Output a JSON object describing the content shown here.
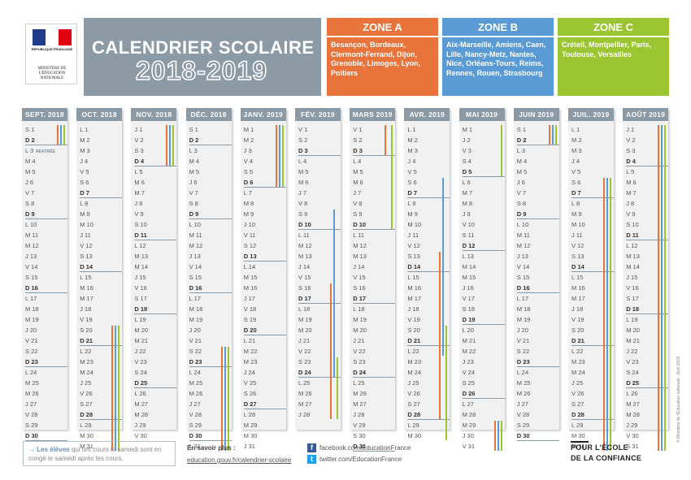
{
  "logo": {
    "republic": "RÉPUBLIQUE FRANÇAISE",
    "ministry": "MINISTÈRE DE L'ÉDUCATION NATIONALE",
    "flag_colors": [
      "#1f3a8a",
      "#ffffff",
      "#e1000f"
    ]
  },
  "title": {
    "line1": "CALENDRIER SCOLAIRE",
    "line2": "2018-2019"
  },
  "zones": [
    {
      "key": "A",
      "name": "ZONE A",
      "color": "#e8743b",
      "cities": "Besançon, Bordeaux, Clermont-Ferrand, Dijon, Grenoble, Limoges, Lyon, Poitiers"
    },
    {
      "key": "B",
      "name": "ZONE B",
      "color": "#5b9bd5",
      "cities": "Aix-Marseille, Amiens, Caen, Lille, Nancy-Metz, Nantes, Nice, Orléans-Tours, Reims, Rennes, Rouen, Strasbourg"
    },
    {
      "key": "C",
      "name": "ZONE C",
      "color": "#9bc531",
      "cities": "Créteil, Montpellier, Paris, Toulouse, Versailles"
    }
  ],
  "months": [
    {
      "name": "SEPT. 2018",
      "days": [
        "S 1",
        "D 2",
        "L 3",
        "M 4",
        "M 5",
        "J 6",
        "V 7",
        "S 8",
        "D 9",
        "L 10",
        "M 11",
        "M 12",
        "J 13",
        "V 14",
        "S 15",
        "D 16",
        "L 17",
        "M 18",
        "M 19",
        "J 20",
        "V 21",
        "S 22",
        "D 23",
        "L 24",
        "M 25",
        "M 26",
        "J 27",
        "V 28",
        "S 29",
        "D 30"
      ],
      "note": {
        "day": 3,
        "text": "RENTRÉE"
      },
      "bars": [
        {
          "zone": "A",
          "from": 1,
          "to": 2
        },
        {
          "zone": "B",
          "from": 1,
          "to": 2
        },
        {
          "zone": "C",
          "from": 1,
          "to": 2
        }
      ]
    },
    {
      "name": "OCT. 2018",
      "days": [
        "L 1",
        "M 2",
        "M 3",
        "J 4",
        "V 5",
        "S 6",
        "D 7",
        "L 8",
        "M 9",
        "M 10",
        "J 11",
        "V 12",
        "S 13",
        "D 14",
        "L 15",
        "M 16",
        "M 17",
        "J 18",
        "V 19",
        "S 20",
        "D 21",
        "L 22",
        "M 23",
        "M 24",
        "J 25",
        "V 26",
        "S 27",
        "D 28",
        "L 29",
        "M 30",
        "M 31"
      ],
      "bars": [
        {
          "zone": "A",
          "from": 20,
          "to": 31
        },
        {
          "zone": "B",
          "from": 20,
          "to": 31
        },
        {
          "zone": "C",
          "from": 20,
          "to": 31
        }
      ]
    },
    {
      "name": "NOV. 2018",
      "days": [
        "J 1",
        "V 2",
        "S 3",
        "D 4",
        "L 5",
        "M 6",
        "M 7",
        "J 8",
        "V 9",
        "S 10",
        "D 11",
        "L 12",
        "M 13",
        "M 14",
        "J 15",
        "V 16",
        "S 17",
        "D 18",
        "L 19",
        "M 20",
        "M 21",
        "J 22",
        "V 23",
        "S 24",
        "D 25",
        "L 26",
        "M 27",
        "M 28",
        "J 29",
        "V 30"
      ],
      "bars": [
        {
          "zone": "A",
          "from": 1,
          "to": 4
        },
        {
          "zone": "B",
          "from": 1,
          "to": 4
        },
        {
          "zone": "C",
          "from": 1,
          "to": 4
        }
      ]
    },
    {
      "name": "DÉC. 2018",
      "days": [
        "S 1",
        "D 2",
        "L 3",
        "M 4",
        "M 5",
        "J 6",
        "V 7",
        "S 8",
        "D 9",
        "L 10",
        "M 11",
        "M 12",
        "J 13",
        "V 14",
        "S 15",
        "D 16",
        "L 17",
        "M 18",
        "M 19",
        "J 20",
        "V 21",
        "S 22",
        "D 23",
        "L 24",
        "M 25",
        "M 26",
        "J 27",
        "V 28",
        "S 29",
        "D 30",
        "L 31"
      ],
      "bars": [
        {
          "zone": "A",
          "from": 22,
          "to": 31
        },
        {
          "zone": "B",
          "from": 22,
          "to": 31
        },
        {
          "zone": "C",
          "from": 22,
          "to": 31
        }
      ]
    },
    {
      "name": "JANV. 2019",
      "days": [
        "M 1",
        "M 2",
        "J 3",
        "V 4",
        "S 5",
        "D 6",
        "L 7",
        "M 8",
        "M 9",
        "J 10",
        "V 11",
        "S 12",
        "D 13",
        "L 14",
        "M 15",
        "M 16",
        "J 17",
        "V 18",
        "S 19",
        "D 20",
        "L 21",
        "M 22",
        "M 23",
        "J 24",
        "V 25",
        "S 26",
        "D 27",
        "L 28",
        "M 29",
        "M 30",
        "J 31"
      ],
      "bars": [
        {
          "zone": "A",
          "from": 1,
          "to": 6
        },
        {
          "zone": "B",
          "from": 1,
          "to": 6
        },
        {
          "zone": "C",
          "from": 1,
          "to": 6
        }
      ]
    },
    {
      "name": "FÉV. 2019",
      "days": [
        "V 1",
        "S 2",
        "D 3",
        "L 4",
        "M 5",
        "M 6",
        "J 7",
        "V 8",
        "S 9",
        "D 10",
        "L 11",
        "M 12",
        "M 13",
        "J 14",
        "V 15",
        "S 16",
        "D 17",
        "L 18",
        "M 19",
        "M 20",
        "J 21",
        "V 22",
        "S 23",
        "D 24",
        "L 25",
        "M 26",
        "M 27",
        "J 28"
      ],
      "bars": [
        {
          "zone": "B",
          "from": 9,
          "to": 24
        },
        {
          "zone": "A",
          "from": 16,
          "to": 28
        },
        {
          "zone": "C",
          "from": 23,
          "to": 28
        }
      ]
    },
    {
      "name": "MARS 2019",
      "days": [
        "V 1",
        "S 2",
        "D 3",
        "L 4",
        "M 5",
        "M 6",
        "J 7",
        "V 8",
        "S 9",
        "D 10",
        "L 11",
        "M 12",
        "M 13",
        "J 14",
        "V 15",
        "S 16",
        "D 17",
        "L 18",
        "M 19",
        "M 20",
        "J 21",
        "V 22",
        "S 23",
        "D 24",
        "L 25",
        "M 26",
        "M 27",
        "J 28",
        "V 29",
        "S 30",
        "D 31"
      ],
      "bars": [
        {
          "zone": "A",
          "from": 1,
          "to": 3
        },
        {
          "zone": "C",
          "from": 1,
          "to": 10
        }
      ]
    },
    {
      "name": "AVR. 2019",
      "days": [
        "L 1",
        "M 2",
        "M 3",
        "J 4",
        "V 5",
        "S 6",
        "D 7",
        "L 8",
        "M 9",
        "M 10",
        "J 11",
        "V 12",
        "S 13",
        "D 14",
        "L 15",
        "M 16",
        "M 17",
        "J 18",
        "V 19",
        "S 20",
        "D 21",
        "L 22",
        "M 23",
        "M 24",
        "J 25",
        "V 26",
        "S 27",
        "D 28",
        "L 29",
        "M 30"
      ],
      "bars": [
        {
          "zone": "B",
          "from": 6,
          "to": 22
        },
        {
          "zone": "A",
          "from": 13,
          "to": 28
        },
        {
          "zone": "C",
          "from": 20,
          "to": 30
        }
      ]
    },
    {
      "name": "MAI 2019",
      "days": [
        "M 1",
        "J 2",
        "V 3",
        "S 4",
        "D 5",
        "L 6",
        "M 7",
        "M 8",
        "J 9",
        "V 10",
        "S 11",
        "D 12",
        "L 13",
        "M 14",
        "M 15",
        "J 16",
        "V 17",
        "S 18",
        "D 19",
        "L 20",
        "M 21",
        "M 22",
        "J 23",
        "V 24",
        "S 25",
        "D 26",
        "L 27",
        "M 28",
        "M 29",
        "J 30",
        "V 31"
      ],
      "bars": [
        {
          "zone": "C",
          "from": 1,
          "to": 5
        },
        {
          "zone": "A",
          "from": 29,
          "to": 31
        },
        {
          "zone": "B",
          "from": 29,
          "to": 31
        },
        {
          "zone": "C",
          "from": 29,
          "to": 31
        }
      ]
    },
    {
      "name": "JUIN 2019",
      "days": [
        "S 1",
        "D 2",
        "L 3",
        "M 4",
        "M 5",
        "J 6",
        "V 7",
        "S 8",
        "D 9",
        "L 10",
        "M 11",
        "M 12",
        "J 13",
        "V 14",
        "S 15",
        "D 16",
        "L 17",
        "M 18",
        "M 19",
        "J 20",
        "V 21",
        "S 22",
        "D 23",
        "L 24",
        "M 25",
        "M 26",
        "J 27",
        "V 28",
        "S 29",
        "D 30"
      ],
      "bars": [
        {
          "zone": "A",
          "from": 1,
          "to": 2
        },
        {
          "zone": "B",
          "from": 1,
          "to": 2
        },
        {
          "zone": "C",
          "from": 1,
          "to": 2
        }
      ]
    },
    {
      "name": "JUIL. 2019",
      "days": [
        "L 1",
        "M 2",
        "M 3",
        "J 4",
        "V 5",
        "S 6",
        "D 7",
        "L 8",
        "M 9",
        "M 10",
        "J 11",
        "V 12",
        "S 13",
        "D 14",
        "L 15",
        "M 16",
        "M 17",
        "J 18",
        "V 19",
        "S 20",
        "D 21",
        "L 22",
        "M 23",
        "M 24",
        "J 25",
        "V 26",
        "S 27",
        "D 28",
        "L 29",
        "M 30",
        "M 31"
      ],
      "bars": [
        {
          "zone": "A",
          "from": 6,
          "to": 31
        },
        {
          "zone": "B",
          "from": 6,
          "to": 31
        },
        {
          "zone": "C",
          "from": 6,
          "to": 31
        }
      ]
    },
    {
      "name": "AOÛT 2019",
      "days": [
        "J 1",
        "V 2",
        "S 3",
        "D 4",
        "L 5",
        "M 6",
        "M 7",
        "J 8",
        "V 9",
        "S 10",
        "D 11",
        "L 12",
        "M 13",
        "M 14",
        "J 15",
        "V 16",
        "S 17",
        "D 18",
        "L 19",
        "M 20",
        "M 21",
        "J 22",
        "V 23",
        "S 24",
        "D 25",
        "L 26",
        "M 27",
        "M 28",
        "J 29",
        "V 30",
        "S 31"
      ],
      "bars": [
        {
          "zone": "A",
          "from": 1,
          "to": 31
        },
        {
          "zone": "B",
          "from": 1,
          "to": 31
        },
        {
          "zone": "C",
          "from": 1,
          "to": 31
        }
      ]
    }
  ],
  "footer": {
    "note_bold": "Les élèves",
    "note_rest": " qui ont cours le samedi sont en congé le samedi après les cours.",
    "more_title": "En savoir plus :",
    "more_url": "education.gouv.fr/calendrier-scolaire",
    "facebook": "facebook.com/EducationFrance",
    "twitter": "twitter.com/EducationFrance",
    "slogan_line1": "POUR L'ÉCOLE",
    "slogan_line2": "DE LA CONFIANCE",
    "copyright": "© Ministère de l'Éducation nationale - Avril 2018"
  }
}
